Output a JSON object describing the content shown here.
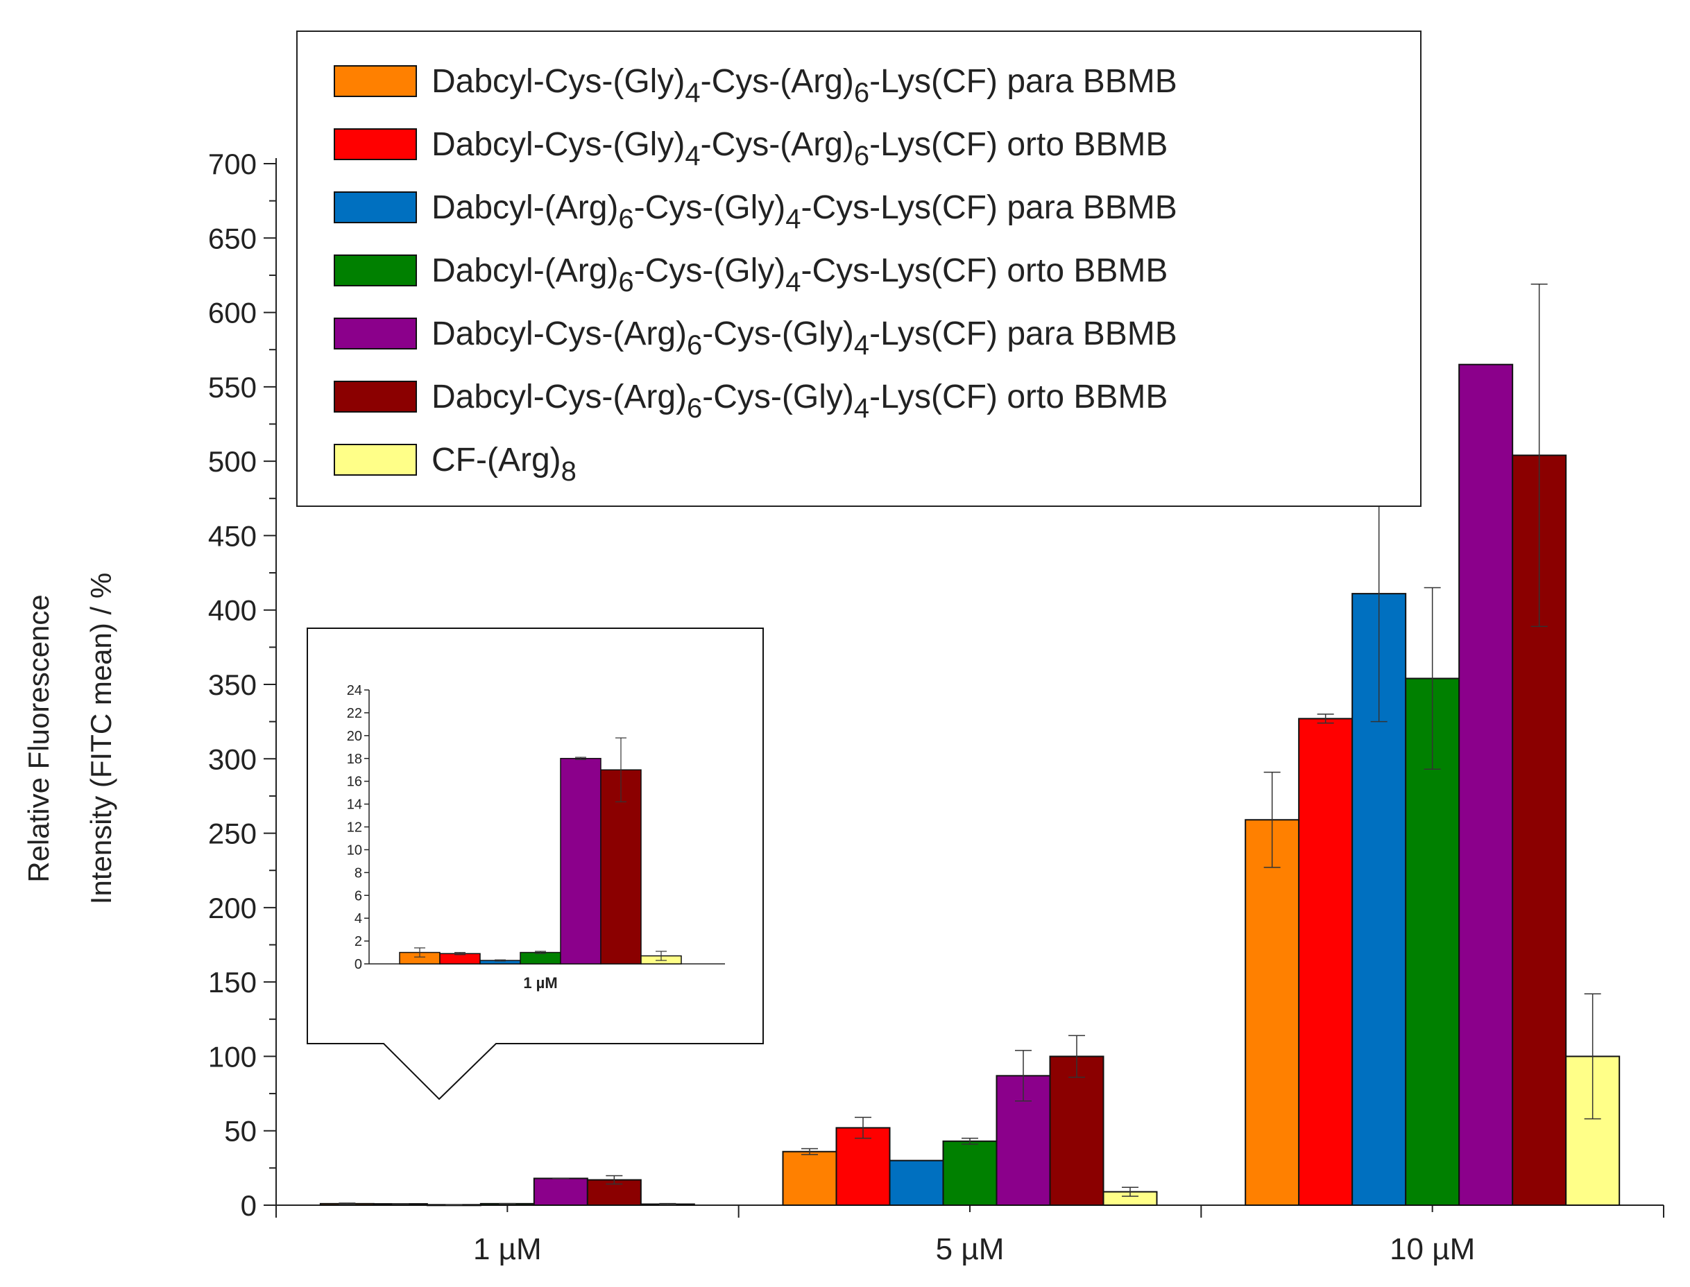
{
  "chart_data": {
    "type": "bar",
    "xlabel": "",
    "ylabel_line1": "Relative Fluorescence",
    "ylabel_line2": "Intensity (FITC mean) / %",
    "ylim": [
      0,
      700
    ],
    "yticks": [
      "0",
      "50",
      "100",
      "150",
      "200",
      "250",
      "300",
      "350",
      "400",
      "450",
      "500",
      "550",
      "600",
      "650",
      "700"
    ],
    "categories": [
      "1 µM",
      "5 µM",
      "10 µM"
    ],
    "legend_position": "top",
    "series": [
      {
        "name": "Dabcyl-Cys-(Gly)4-Cys-(Arg)6-Lys(CF) para BBMB",
        "color": "#ff8000",
        "label_parts": [
          [
            "Dabcyl-Cys-(Gly)",
            ""
          ],
          [
            "4",
            "sub"
          ],
          [
            "-Cys-(Arg)",
            ""
          ],
          [
            "6",
            "sub"
          ],
          [
            "-Lys(CF) para BBMB",
            ""
          ]
        ],
        "values": [
          1.0,
          36,
          259
        ],
        "errors": [
          0.4,
          2,
          32
        ]
      },
      {
        "name": "Dabcyl-Cys-(Gly)4-Cys-(Arg)6-Lys(CF) orto BBMB",
        "color": "#ff0000",
        "label_parts": [
          [
            "Dabcyl-Cys-(Gly)",
            ""
          ],
          [
            "4",
            "sub"
          ],
          [
            "-Cys-(Arg)",
            ""
          ],
          [
            "6",
            "sub"
          ],
          [
            "-Lys(CF) orto BBMB",
            ""
          ]
        ],
        "values": [
          0.9,
          52,
          327
        ],
        "errors": [
          0.1,
          7,
          3
        ]
      },
      {
        "name": "Dabcyl-(Arg)6-Cys-(Gly)4-Cys-Lys(CF) para BBMB",
        "color": "#0070c0",
        "label_parts": [
          [
            "Dabcyl-(Arg)",
            ""
          ],
          [
            "6",
            "sub"
          ],
          [
            "-Cys-(Gly)",
            ""
          ],
          [
            "4",
            "sub"
          ],
          [
            "-Cys-Lys(CF) para BBMB",
            ""
          ]
        ],
        "values": [
          0.3,
          30,
          411
        ],
        "errors": [
          0.05,
          0,
          86
        ]
      },
      {
        "name": "Dabcyl-(Arg)6-Cys-(Gly)4-Cys-Lys(CF) orto BBMB",
        "color": "#008000",
        "label_parts": [
          [
            "Dabcyl-(Arg)",
            ""
          ],
          [
            "6",
            "sub"
          ],
          [
            "-Cys-(Gly)",
            ""
          ],
          [
            "4",
            "sub"
          ],
          [
            "-Cys-Lys(CF) orto BBMB",
            ""
          ]
        ],
        "values": [
          1.0,
          43,
          354
        ],
        "errors": [
          0.1,
          2,
          61
        ]
      },
      {
        "name": "Dabcyl-Cys-(Arg)6-Cys-(Gly)4-Lys(CF) para BBMB",
        "color": "#8b008b",
        "label_parts": [
          [
            "Dabcyl-Cys-(Arg)",
            ""
          ],
          [
            "6",
            "sub"
          ],
          [
            "-Cys-(Gly)",
            ""
          ],
          [
            "4",
            "sub"
          ],
          [
            "-Lys(CF) para BBMB",
            ""
          ]
        ],
        "values": [
          18.0,
          87,
          565
        ],
        "errors": [
          0.1,
          17,
          0
        ]
      },
      {
        "name": "Dabcyl-Cys-(Arg)6-Cys-(Gly)4-Lys(CF) orto BBMB",
        "color": "#8b0000",
        "label_parts": [
          [
            "Dabcyl-Cys-(Arg)",
            ""
          ],
          [
            "6",
            "sub"
          ],
          [
            "-Cys-(Gly)",
            ""
          ],
          [
            "4",
            "sub"
          ],
          [
            "-Lys(CF) orto BBMB",
            ""
          ]
        ],
        "values": [
          17.0,
          100,
          504
        ],
        "errors": [
          2.8,
          14,
          115
        ]
      },
      {
        "name": "CF-(Arg)8",
        "color": "#ffff88",
        "label_parts": [
          [
            "CF-(Arg)",
            ""
          ],
          [
            "8",
            "sub"
          ]
        ],
        "values": [
          0.7,
          9,
          100
        ],
        "errors": [
          0.4,
          3,
          42
        ]
      }
    ],
    "inset": {
      "categories": [
        "1 µM"
      ],
      "ylim": [
        0,
        24
      ],
      "yticks": [
        "0",
        "2",
        "4",
        "6",
        "8",
        "10",
        "12",
        "14",
        "16",
        "18",
        "20",
        "22",
        "24"
      ]
    }
  }
}
